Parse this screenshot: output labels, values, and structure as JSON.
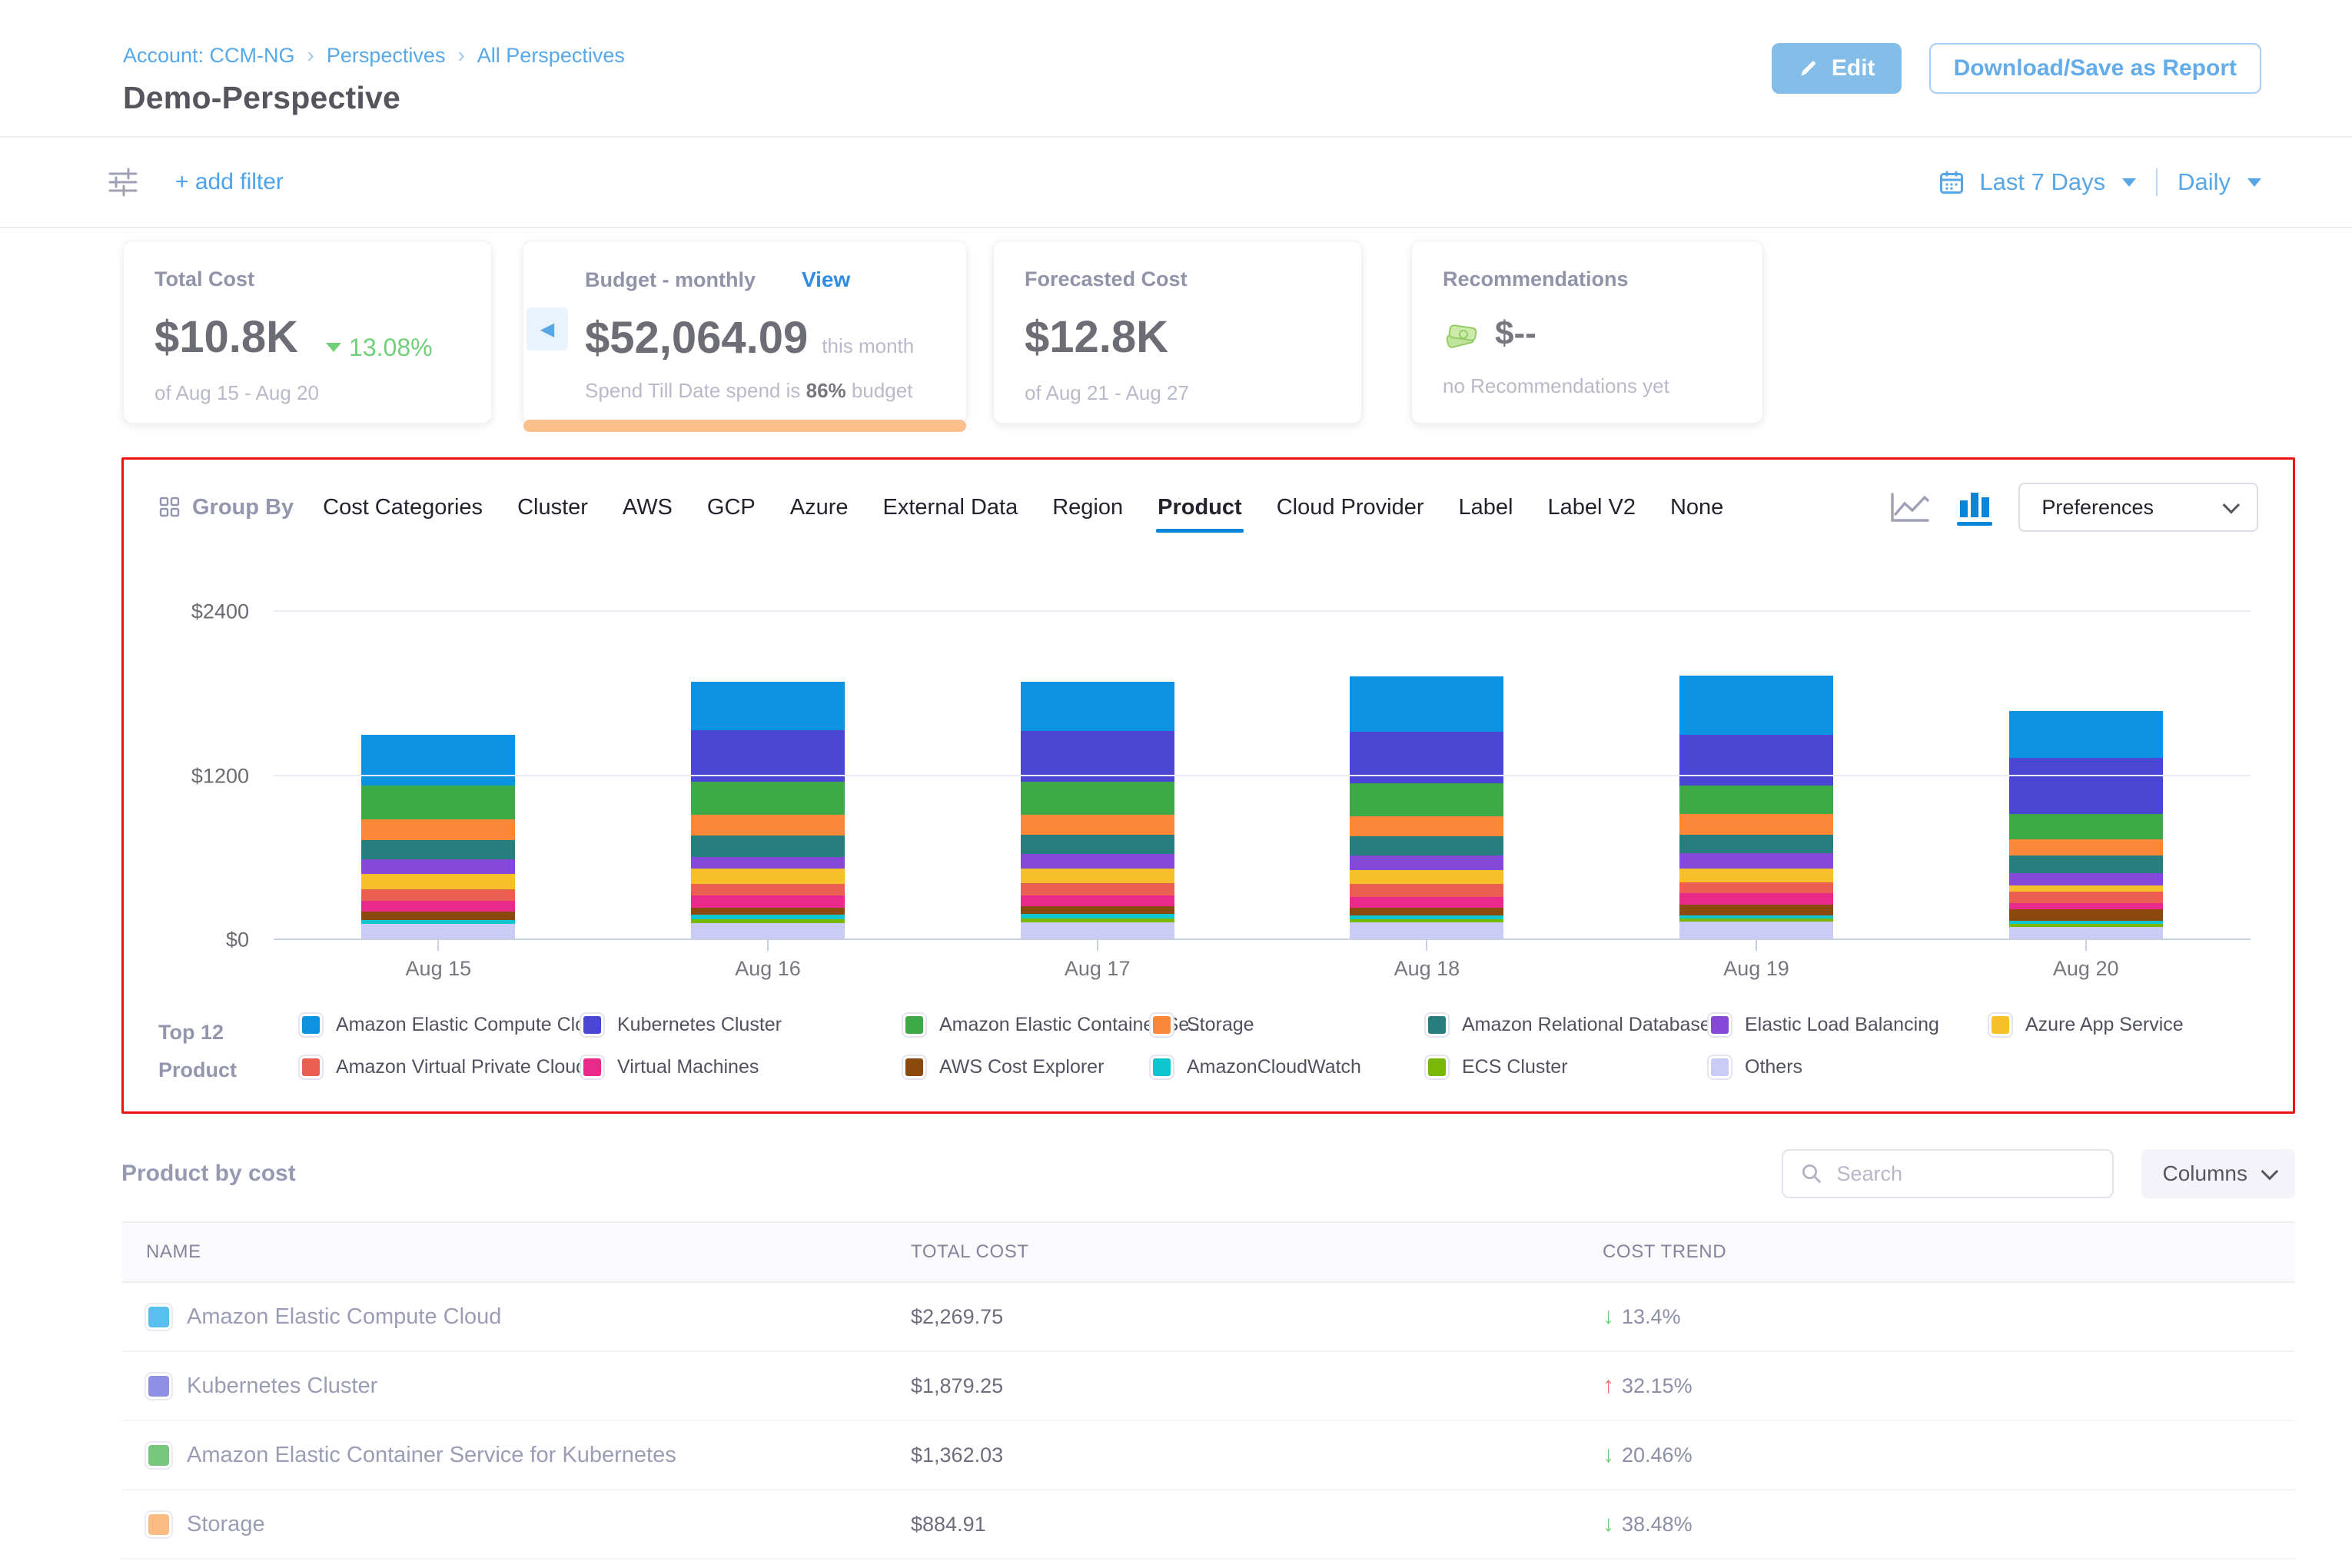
{
  "header": {
    "breadcrumb": [
      "Account: CCM-NG",
      "Perspectives",
      "All Perspectives"
    ],
    "title": "Demo-Perspective",
    "edit_label": "Edit",
    "download_label": "Download/Save as Report"
  },
  "filter_bar": {
    "add_filter_label": "+ add filter",
    "date_range_label": "Last 7 Days",
    "granularity_label": "Daily"
  },
  "cards": {
    "total_cost": {
      "label": "Total Cost",
      "value": "$10.8K",
      "trend": "13.08%",
      "trend_direction": "down",
      "period": "of Aug 15 - Aug 20"
    },
    "budget": {
      "label": "Budget - monthly",
      "view_label": "View",
      "value": "$52,064.09",
      "value_suffix": "this month",
      "note_prefix": "Spend Till Date spend is",
      "note_pct": "86%",
      "note_suffix": "budget"
    },
    "forecasted": {
      "label": "Forecasted Cost",
      "value": "$12.8K",
      "period": "of Aug 21 - Aug 27"
    },
    "recommendations": {
      "label": "Recommendations",
      "value": "$--",
      "note": "no Recommendations yet"
    }
  },
  "group_by": {
    "label": "Group By",
    "tabs": [
      "Cost Categories",
      "Cluster",
      "AWS",
      "GCP",
      "Azure",
      "External Data",
      "Region",
      "Product",
      "Cloud Provider",
      "Label",
      "Label V2",
      "None"
    ],
    "active_tab": "Product",
    "active_chart_type": "bar-chart",
    "preferences_label": "Preferences"
  },
  "chart_data": {
    "type": "bar",
    "stacked": true,
    "categories": [
      "Aug 15",
      "Aug 16",
      "Aug 17",
      "Aug 18",
      "Aug 19",
      "Aug 20"
    ],
    "ylim": [
      0,
      2400
    ],
    "y_ticks": [
      "$0",
      "$1200",
      "$2400"
    ],
    "grid": true,
    "legend_position": "bottom",
    "legend_title_line1": "Top 12",
    "legend_title_line2": "Product",
    "series": [
      {
        "name": "Amazon Elastic Compute Cloud",
        "color": "#0b92e1",
        "values": [
          368,
          357,
          362,
          408,
          430,
          345
        ]
      },
      {
        "name": "Kubernetes Cluster",
        "color": "#4846d3",
        "values": [
          0,
          374,
          368,
          374,
          374,
          408
        ]
      },
      {
        "name": "Amazon Elastic Container Service for Kubernetes",
        "color": "#3eaa47",
        "values": [
          249,
          243,
          243,
          243,
          204,
          187
        ]
      },
      {
        "name": "Storage",
        "color": "#fb8738",
        "values": [
          153,
          153,
          147,
          147,
          153,
          119
        ]
      },
      {
        "name": "Amazon Relational Database Service",
        "color": "#267e7e",
        "values": [
          141,
          158,
          141,
          141,
          136,
          130
        ]
      },
      {
        "name": "Elastic Load Balancing",
        "color": "#8549d8",
        "values": [
          108,
          85,
          108,
          108,
          113,
          85
        ]
      },
      {
        "name": "Azure App Service",
        "color": "#f7c02b",
        "values": [
          108,
          113,
          102,
          102,
          102,
          45
        ]
      },
      {
        "name": "Amazon Virtual Private Cloud",
        "color": "#ea5f52",
        "values": [
          85,
          79,
          91,
          91,
          79,
          85
        ]
      },
      {
        "name": "Virtual Machines",
        "color": "#ea2a8b",
        "values": [
          79,
          91,
          79,
          79,
          79,
          45
        ]
      },
      {
        "name": "AWS Cost Explorer",
        "color": "#8a4a0c",
        "values": [
          62,
          51,
          57,
          57,
          79,
          85
        ]
      },
      {
        "name": "AmazonCloudWatch",
        "color": "#0fc6cf",
        "values": [
          28,
          34,
          34,
          28,
          23,
          23
        ]
      },
      {
        "name": "ECS Cluster",
        "color": "#79b807",
        "values": [
          0,
          28,
          28,
          23,
          23,
          23
        ]
      },
      {
        "name": "Others",
        "color": "#cbccf6",
        "values": [
          119,
          125,
          130,
          130,
          136,
          96
        ]
      }
    ],
    "legend_items": [
      {
        "label": "Amazon Elastic Compute Clo...",
        "color": "#0b92e1"
      },
      {
        "label": "Amazon Virtual Private Cloud",
        "color": "#ea5f52"
      },
      {
        "label": "Kubernetes Cluster",
        "color": "#4846d3"
      },
      {
        "label": "Virtual Machines",
        "color": "#ea2a8b"
      },
      {
        "label": "Amazon Elastic Container Se...",
        "color": "#3eaa47"
      },
      {
        "label": "AWS Cost Explorer",
        "color": "#8a4a0c"
      },
      {
        "label": "Storage",
        "color": "#fb8738"
      },
      {
        "label": "AmazonCloudWatch",
        "color": "#0fc6cf"
      },
      {
        "label": "Amazon Relational Database ...",
        "color": "#267e7e"
      },
      {
        "label": "ECS Cluster",
        "color": "#79b807"
      },
      {
        "label": "Elastic Load Balancing",
        "color": "#8549d8"
      },
      {
        "label": "Others",
        "color": "#cbccf6"
      },
      {
        "label": "Azure App Service",
        "color": "#f7c02b"
      }
    ]
  },
  "table": {
    "title": "Product by cost",
    "search_placeholder": "Search",
    "columns_label": "Columns",
    "headers": [
      "NAME",
      "TOTAL COST",
      "COST TREND"
    ],
    "rows": [
      {
        "name": "Amazon Elastic Compute Cloud",
        "color": "#57c0f0",
        "total_cost": "$2,269.75",
        "cost_trend": "13.4%",
        "trend_direction": "down"
      },
      {
        "name": "Kubernetes Cluster",
        "color": "#8f90e5",
        "total_cost": "$1,879.25",
        "cost_trend": "32.15%",
        "trend_direction": "up"
      },
      {
        "name": "Amazon Elastic Container Service for Kubernetes",
        "color": "#77c77d",
        "total_cost": "$1,362.03",
        "cost_trend": "20.46%",
        "trend_direction": "down"
      },
      {
        "name": "Storage",
        "color": "#fbbc84",
        "total_cost": "$884.91",
        "cost_trend": "38.48%",
        "trend_direction": "down"
      }
    ]
  }
}
